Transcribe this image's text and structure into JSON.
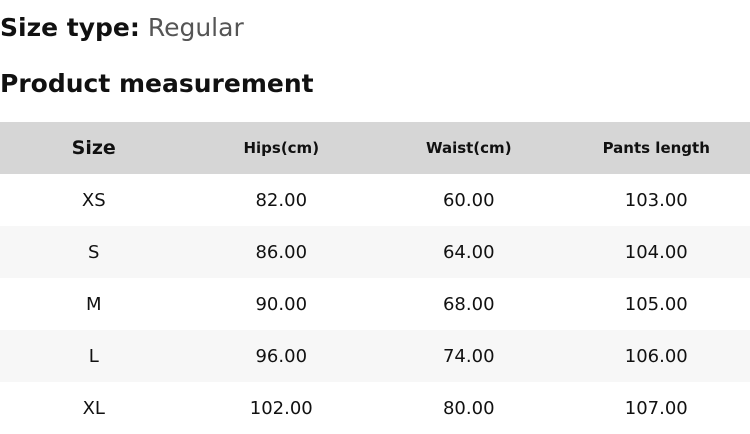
{
  "size_type": {
    "label": "Size type:",
    "value": "Regular"
  },
  "title": "Product measurement",
  "table": {
    "headers": [
      "Size",
      "Hips(cm)",
      "Waist(cm)",
      "Pants length"
    ],
    "rows": [
      [
        "XS",
        "82.00",
        "60.00",
        "103.00"
      ],
      [
        "S",
        "86.00",
        "64.00",
        "104.00"
      ],
      [
        "M",
        "90.00",
        "68.00",
        "105.00"
      ],
      [
        "L",
        "96.00",
        "74.00",
        "106.00"
      ],
      [
        "XL",
        "102.00",
        "80.00",
        "107.00"
      ]
    ]
  }
}
